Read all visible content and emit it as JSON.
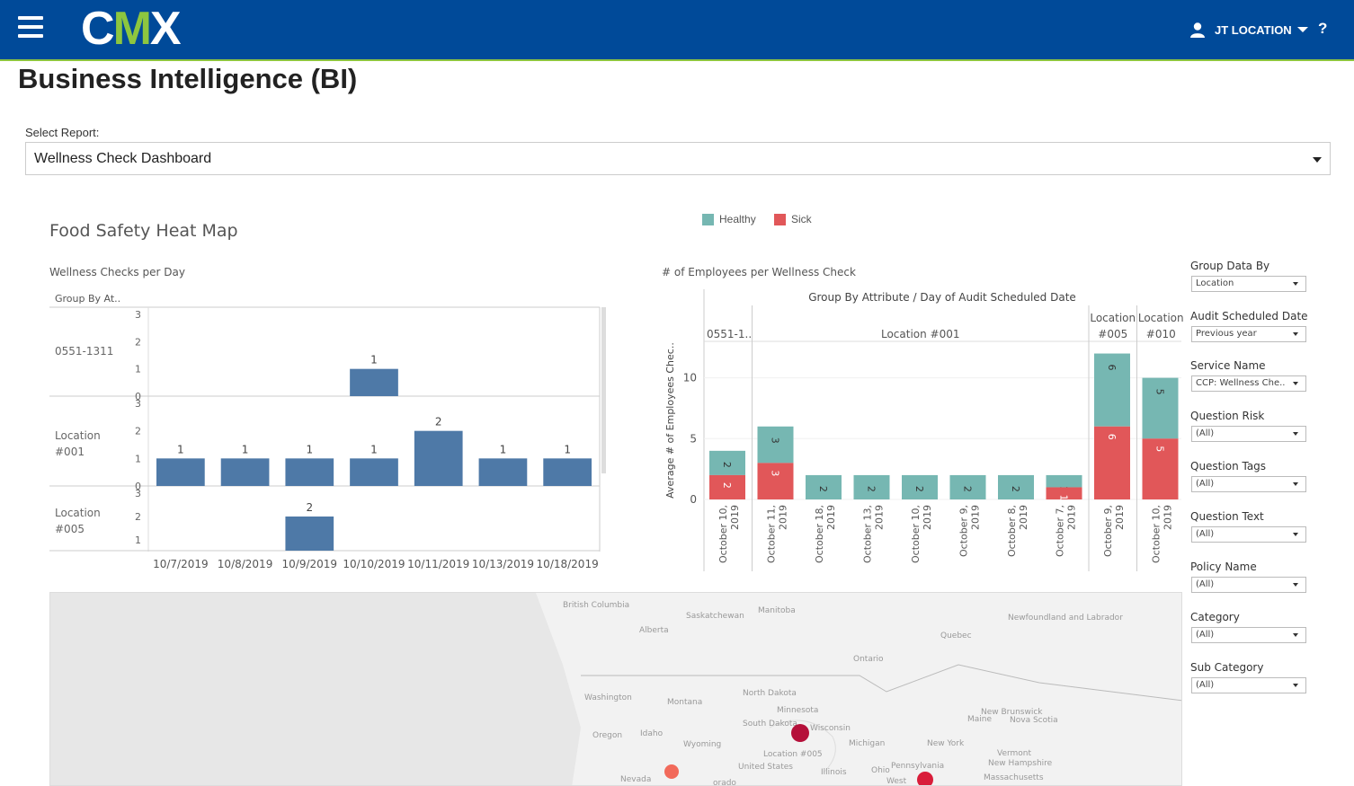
{
  "header": {
    "logo": {
      "c": "C",
      "m": "M",
      "x": "X"
    },
    "user_label": "JT LOCATION",
    "help_label": "?"
  },
  "page": {
    "title": "Business Intelligence (BI)",
    "select_label": "Select Report:",
    "selected_report": "Wellness Check Dashboard"
  },
  "dashboard": {
    "title": "Food Safety Heat Map",
    "legend": [
      {
        "label": "Healthy",
        "color": "#76b7b2"
      },
      {
        "label": "Sick",
        "color": "#e15759"
      }
    ],
    "bar_color": "#4e79a7"
  },
  "chart_data": [
    {
      "type": "bar",
      "title": "Wellness Checks per Day",
      "row_header": "Group By At..",
      "categories": [
        "10/7/2019",
        "10/8/2019",
        "10/9/2019",
        "10/10/2019",
        "10/11/2019",
        "10/13/2019",
        "10/18/2019"
      ],
      "rows": [
        {
          "label": "0551-1311",
          "ticks": [
            0,
            1,
            2,
            3
          ],
          "values": [
            null,
            null,
            null,
            1,
            null,
            null,
            null
          ]
        },
        {
          "label": "Location #001",
          "ticks": [
            0,
            1,
            2,
            3
          ],
          "values": [
            1,
            1,
            1,
            1,
            2,
            1,
            1
          ]
        },
        {
          "label": "Location #005",
          "ticks": [
            1,
            2,
            3
          ],
          "values": [
            null,
            null,
            2,
            null,
            null,
            null,
            null
          ]
        }
      ],
      "ylim": [
        0,
        3
      ]
    },
    {
      "type": "bar",
      "stacked": true,
      "title": "# of Employees per Wellness Check",
      "header": "Group By Attribute  /  Day of Audit Scheduled Date",
      "ylabel": "Average # of Employees Chec..",
      "yticks": [
        0,
        5,
        10
      ],
      "ylim": [
        0,
        13
      ],
      "groups": [
        {
          "label": "0551-1..",
          "bars": [
            {
              "x": "October 10, 2019",
              "healthy": 2,
              "sick": 2
            }
          ]
        },
        {
          "label": "Location #001",
          "bars": [
            {
              "x": "October 11, 2019",
              "healthy": 3,
              "sick": 3
            },
            {
              "x": "October 18, 2019",
              "healthy": 2,
              "sick": 0
            },
            {
              "x": "October 13, 2019",
              "healthy": 2,
              "sick": 0
            },
            {
              "x": "October 10, 2019",
              "healthy": 2,
              "sick": 0
            },
            {
              "x": "October 9, 2019",
              "healthy": 2,
              "sick": 0
            },
            {
              "x": "October 8, 2019",
              "healthy": 2,
              "sick": 0
            },
            {
              "x": "October 7, 2019",
              "healthy": 1,
              "sick": 1
            }
          ]
        },
        {
          "label": "Location #005",
          "bars": [
            {
              "x": "October 9, 2019",
              "healthy": 6,
              "sick": 6
            }
          ]
        },
        {
          "label": "Location #010",
          "bars": [
            {
              "x": "October 10, 2019",
              "healthy": 5,
              "sick": 5
            }
          ]
        }
      ]
    }
  ],
  "filters": [
    {
      "label": "Group Data By",
      "value": "Location"
    },
    {
      "label": "Audit Scheduled Date",
      "value": "Previous year"
    },
    {
      "label": "Service Name",
      "value": "CCP: Wellness Che..."
    },
    {
      "label": "Question Risk",
      "value": "(All)"
    },
    {
      "label": "Question Tags",
      "value": "(All)"
    },
    {
      "label": "Question Text",
      "value": "(All)"
    },
    {
      "label": "Policy Name",
      "value": "(All)"
    },
    {
      "label": "Category",
      "value": "(All)"
    },
    {
      "label": "Sub Category",
      "value": "(All)"
    }
  ],
  "map": {
    "labels": [
      "British Columbia",
      "Alberta",
      "Saskatchewan",
      "Manitoba",
      "Ontario",
      "Quebec",
      "Newfoundland and Labrador",
      "Washington",
      "Montana",
      "North Dakota",
      "Minnesota",
      "South Dakota",
      "Wisconsin",
      "Michigan",
      "Oregon",
      "Idaho",
      "Wyoming",
      "Nevada",
      "Illinois",
      "Ohio",
      "Pennsylvania",
      "New York",
      "Vermont",
      "New Hampshire",
      "Massachusetts",
      "Maine",
      "New Brunswick",
      "Nova Scotia",
      "West",
      "orado",
      "United States"
    ],
    "point_label": "Location #005",
    "point_colors": [
      "#b5103a",
      "#f26a5b",
      "#d91d3a"
    ]
  }
}
